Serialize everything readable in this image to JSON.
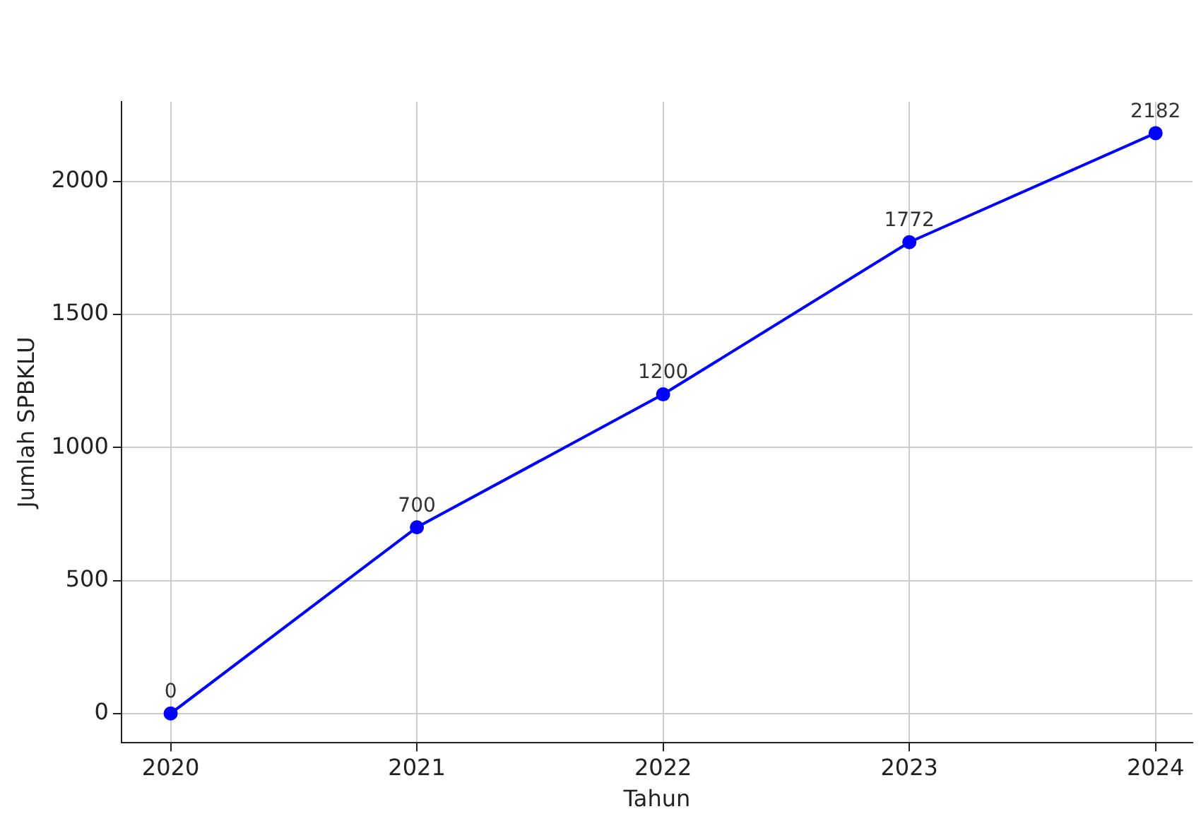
{
  "chart_data": {
    "type": "line",
    "xlabel": "Tahun",
    "ylabel": "Jumlah SPBKLU",
    "x": [
      2020,
      2021,
      2022,
      2023,
      2024
    ],
    "series": [
      {
        "color": "#0000ff",
        "values": [
          0,
          700,
          1200,
          1772,
          2182
        ]
      }
    ],
    "xlim": [
      2019.8,
      2024.15
    ],
    "xticks": [
      2020,
      2021,
      2022,
      2023,
      2024
    ],
    "ylim": [
      -110,
      2300
    ],
    "yticks": [
      0,
      500,
      1000,
      1500,
      2000
    ],
    "grid": true,
    "legend": false,
    "marker": "circle",
    "line_style": "solid",
    "data_labels": true
  }
}
